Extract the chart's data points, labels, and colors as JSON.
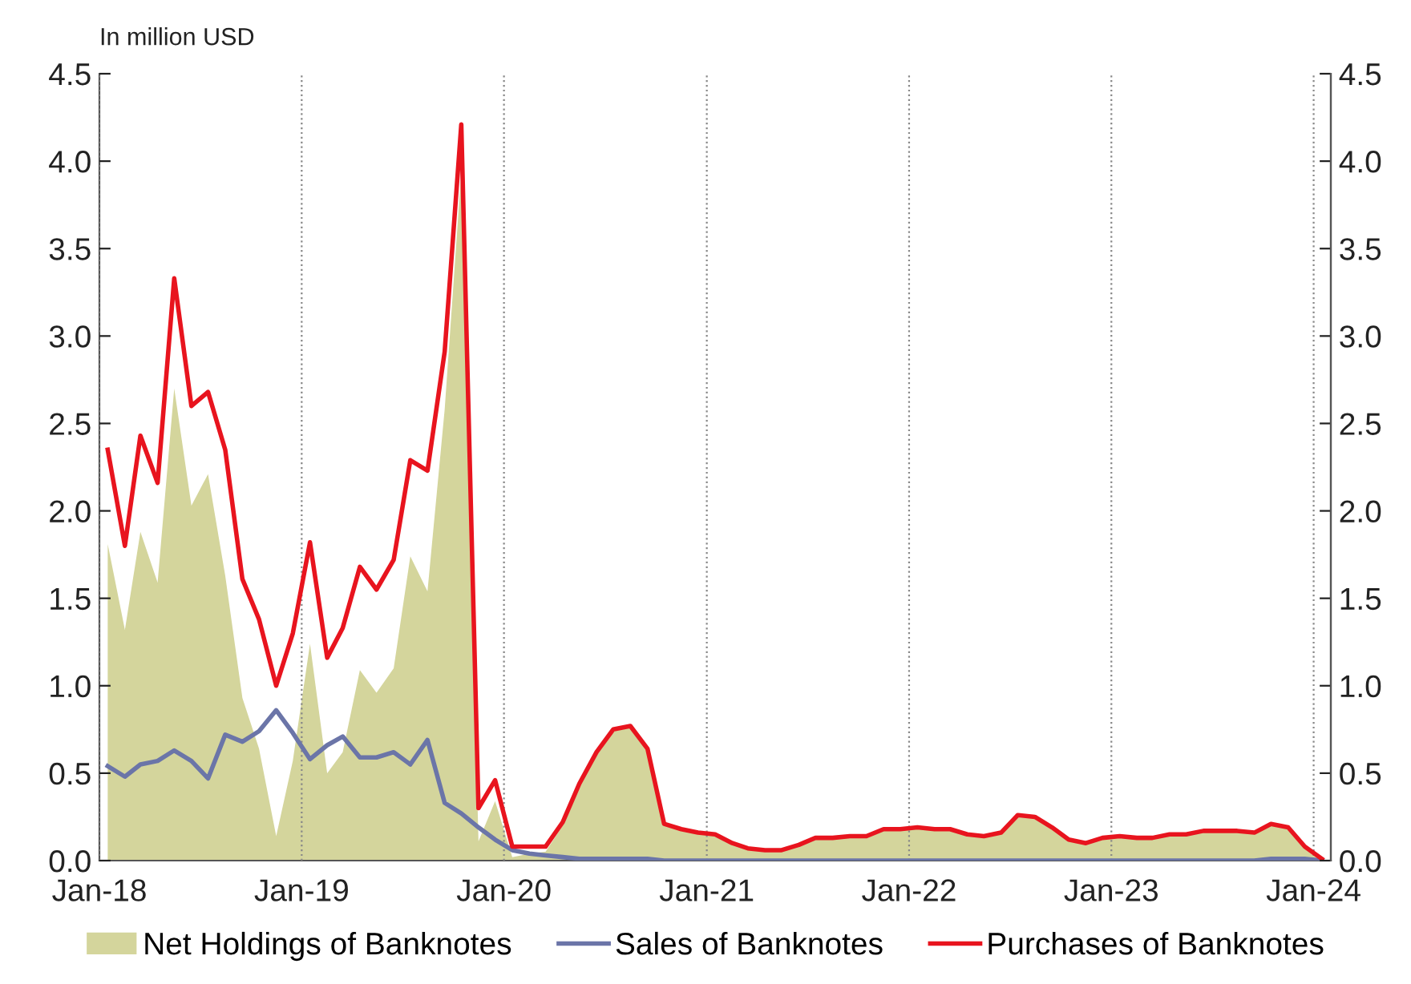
{
  "chart_data": {
    "type": "line",
    "ylabel": "In million USD",
    "x": [
      "2018-01-16",
      "2018-02-16",
      "2018-03-16",
      "2018-04-16",
      "2018-05-16",
      "2018-06-16",
      "2018-07-16",
      "2018-08-16",
      "2018-09-16",
      "2018-10-16",
      "2018-11-16",
      "2018-12-16",
      "2019-01-16",
      "2019-02-16",
      "2019-03-16",
      "2019-04-16",
      "2019-05-16",
      "2019-06-16",
      "2019-07-16",
      "2019-08-16",
      "2019-09-16",
      "2019-10-16",
      "2019-11-16",
      "2019-12-16",
      "2020-01-16",
      "2020-02-16",
      "2020-03-16",
      "2020-04-16",
      "2020-05-16",
      "2020-06-16",
      "2020-07-16",
      "2020-08-16",
      "2020-09-16",
      "2020-10-16",
      "2020-11-16",
      "2020-12-16",
      "2021-01-16",
      "2021-02-16",
      "2021-03-16",
      "2021-04-16",
      "2021-05-16",
      "2021-06-16",
      "2021-07-16",
      "2021-08-16",
      "2021-09-16",
      "2021-10-16",
      "2021-11-16",
      "2021-12-16",
      "2022-01-16",
      "2022-02-16",
      "2022-03-16",
      "2022-04-16",
      "2022-05-16",
      "2022-06-16",
      "2022-07-16",
      "2022-08-16",
      "2022-09-16",
      "2022-10-16",
      "2022-11-16",
      "2022-12-16",
      "2023-01-16",
      "2023-02-16",
      "2023-03-16",
      "2023-04-16",
      "2023-05-16",
      "2023-06-16",
      "2023-07-16",
      "2023-08-16",
      "2023-09-16",
      "2023-10-16",
      "2023-11-16",
      "2023-12-16",
      "2024-01-16"
    ],
    "series": [
      {
        "name": "Net Holdings of Banknotes",
        "type": "area",
        "color": "#d4d59c",
        "values": [
          1.81,
          1.32,
          1.88,
          1.59,
          2.7,
          2.03,
          2.21,
          1.63,
          0.93,
          0.64,
          0.14,
          0.57,
          1.24,
          0.5,
          0.62,
          1.09,
          0.96,
          1.1,
          1.74,
          1.54,
          2.58,
          3.94,
          0.11,
          0.34,
          0.02,
          0.04,
          0.05,
          0.2,
          0.43,
          0.61,
          0.74,
          0.76,
          0.63,
          0.21,
          0.18,
          0.16,
          0.15,
          0.1,
          0.07,
          0.06,
          0.06,
          0.09,
          0.13,
          0.13,
          0.14,
          0.14,
          0.18,
          0.18,
          0.19,
          0.18,
          0.18,
          0.15,
          0.14,
          0.16,
          0.26,
          0.25,
          0.19,
          0.12,
          0.1,
          0.13,
          0.14,
          0.13,
          0.13,
          0.15,
          0.15,
          0.17,
          0.17,
          0.17,
          0.16,
          0.2,
          0.18,
          0.07,
          0.01
        ]
      },
      {
        "name": "Sales of Banknotes",
        "color": "#6b75a8",
        "values": [
          0.54,
          0.48,
          0.55,
          0.57,
          0.63,
          0.57,
          0.47,
          0.72,
          0.68,
          0.74,
          0.86,
          0.73,
          0.58,
          0.66,
          0.71,
          0.59,
          0.59,
          0.62,
          0.55,
          0.69,
          0.33,
          0.27,
          0.19,
          0.12,
          0.06,
          0.04,
          0.03,
          0.02,
          0.01,
          0.01,
          0.01,
          0.01,
          0.01,
          0,
          0,
          0,
          0,
          0,
          0,
          0,
          0,
          0,
          0,
          0,
          0,
          0,
          0,
          0,
          0,
          0,
          0,
          0,
          0,
          0,
          0,
          0,
          0,
          0,
          0,
          0,
          0,
          0,
          0,
          0,
          0,
          0,
          0,
          0,
          0,
          0.01,
          0.01,
          0.01,
          0
        ]
      },
      {
        "name": "Purchases of Banknotes",
        "color": "#e8141e",
        "values": [
          2.35,
          1.8,
          2.43,
          2.16,
          3.33,
          2.6,
          2.68,
          2.35,
          1.61,
          1.38,
          1.0,
          1.3,
          1.82,
          1.16,
          1.33,
          1.68,
          1.55,
          1.72,
          2.29,
          2.23,
          2.91,
          4.21,
          0.3,
          0.46,
          0.08,
          0.08,
          0.08,
          0.22,
          0.44,
          0.62,
          0.75,
          0.77,
          0.64,
          0.21,
          0.18,
          0.16,
          0.15,
          0.1,
          0.07,
          0.06,
          0.06,
          0.09,
          0.13,
          0.13,
          0.14,
          0.14,
          0.18,
          0.18,
          0.19,
          0.18,
          0.18,
          0.15,
          0.14,
          0.16,
          0.26,
          0.25,
          0.19,
          0.12,
          0.1,
          0.13,
          0.14,
          0.13,
          0.13,
          0.15,
          0.15,
          0.17,
          0.17,
          0.17,
          0.16,
          0.21,
          0.19,
          0.08,
          0.01
        ]
      }
    ],
    "xlim": [
      "2018-01-01",
      "2024-02-01"
    ],
    "xticks": [
      {
        "value": "2018-01-01",
        "label": "Jan-18"
      },
      {
        "value": "2019-01-01",
        "label": "Jan-19"
      },
      {
        "value": "2020-01-01",
        "label": "Jan-20"
      },
      {
        "value": "2021-01-01",
        "label": "Jan-21"
      },
      {
        "value": "2022-01-01",
        "label": "Jan-22"
      },
      {
        "value": "2023-01-01",
        "label": "Jan-23"
      },
      {
        "value": "2024-01-01",
        "label": "Jan-24"
      }
    ],
    "ylim": [
      0,
      4.5
    ],
    "yticks": [
      {
        "value": 0,
        "label": "0.0"
      },
      {
        "value": 0.5,
        "label": "0.5"
      },
      {
        "value": 1,
        "label": "1.0"
      },
      {
        "value": 1.5,
        "label": "1.5"
      },
      {
        "value": 2,
        "label": "2.0"
      },
      {
        "value": 2.5,
        "label": "2.5"
      },
      {
        "value": 3,
        "label": "3.0"
      },
      {
        "value": 3.5,
        "label": "3.5"
      },
      {
        "value": 4,
        "label": "4.0"
      },
      {
        "value": 4.5,
        "label": "4.5"
      }
    ],
    "y2lim": [
      0,
      4.5
    ],
    "y2ticks": [
      {
        "value": 0,
        "label": "0.0"
      },
      {
        "value": 0.5,
        "label": "0.5"
      },
      {
        "value": 1,
        "label": "1.0"
      },
      {
        "value": 1.5,
        "label": "1.5"
      },
      {
        "value": 2,
        "label": "2.0"
      },
      {
        "value": 2.5,
        "label": "2.5"
      },
      {
        "value": 3,
        "label": "3.0"
      },
      {
        "value": 3.5,
        "label": "3.5"
      },
      {
        "value": 4,
        "label": "4.0"
      },
      {
        "value": 4.5,
        "label": "4.5"
      }
    ],
    "grid": "x",
    "legend": "bottom",
    "marker": "none",
    "line_style": "solid"
  }
}
